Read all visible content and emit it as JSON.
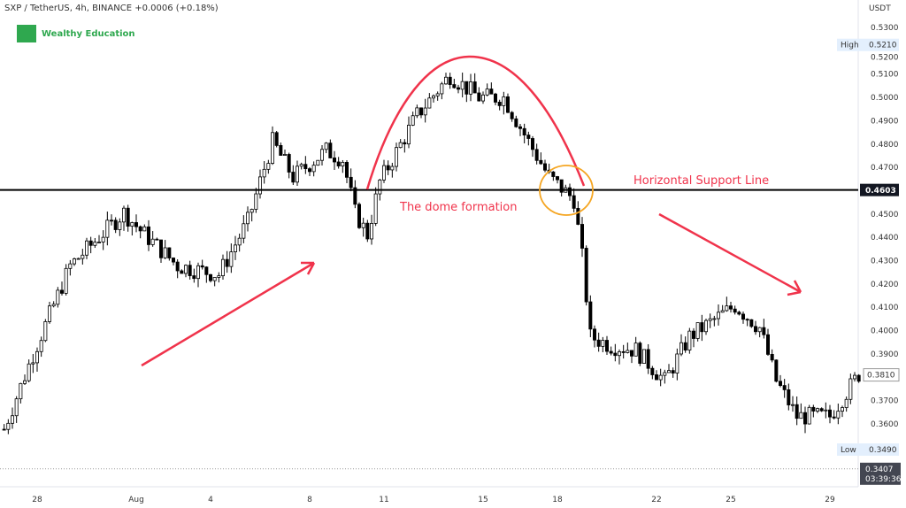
{
  "header": {
    "symbol_line": "SXP / TetherUS, 4h, BINANCE  +0.0006 (+0.18%)"
  },
  "logo": {
    "mark": "WE",
    "text": "Wealthy Education",
    "color": "#2fa84f"
  },
  "chart_data": {
    "type": "candlestick",
    "currency": "USDT",
    "ylim": [
      0.345,
      0.535
    ],
    "y_ticks": [
      "0.5300",
      "0.5200",
      "0.5100",
      "0.5000",
      "0.4900",
      "0.4800",
      "0.4700",
      "0.4500",
      "0.4400",
      "0.4300",
      "0.4200",
      "0.4100",
      "0.4000",
      "0.3900",
      "0.3700",
      "0.3600"
    ],
    "x_ticks": [
      {
        "label": "28",
        "t": "2020-07-28T00:00"
      },
      {
        "label": "Aug",
        "t": "2020-08-01T00:00"
      },
      {
        "label": "4",
        "t": "2020-08-04T00:00"
      },
      {
        "label": "8",
        "t": "2020-08-08T00:00"
      },
      {
        "label": "11",
        "t": "2020-08-11T00:00"
      },
      {
        "label": "15",
        "t": "2020-08-15T00:00"
      },
      {
        "label": "18",
        "t": "2020-08-18T00:00"
      },
      {
        "label": "22",
        "t": "2020-08-22T00:00"
      },
      {
        "label": "25",
        "t": "2020-08-25T00:00"
      },
      {
        "label": "29",
        "t": "2020-08-29T00:00"
      }
    ],
    "approx_close_path": [
      [
        "2020-07-26T16:00",
        0.3577
      ],
      [
        "2020-07-27T20:00",
        0.3898
      ],
      [
        "2020-07-29T08:00",
        0.4278
      ],
      [
        "2020-07-31T12:00",
        0.4506
      ],
      [
        "2020-08-01T04:00",
        0.443
      ],
      [
        "2020-08-02T16:00",
        0.4278
      ],
      [
        "2020-08-04T08:00",
        0.424
      ],
      [
        "2020-08-05T12:00",
        0.4468
      ],
      [
        "2020-08-06T12:00",
        0.481
      ],
      [
        "2020-08-07T08:00",
        0.4658
      ],
      [
        "2020-08-08T16:00",
        0.4772
      ],
      [
        "2020-08-09T08:00",
        0.4734
      ],
      [
        "2020-08-09T20:00",
        0.4506
      ],
      [
        "2020-08-10T08:00",
        0.4411
      ],
      [
        "2020-08-10T20:00",
        0.4639
      ],
      [
        "2020-08-12T08:00",
        0.4924
      ],
      [
        "2020-08-13T16:00",
        0.5095
      ],
      [
        "2020-08-14T20:00",
        0.5
      ],
      [
        "2020-08-15T20:00",
        0.5
      ],
      [
        "2020-08-16T20:00",
        0.481
      ],
      [
        "2020-08-17T16:00",
        0.4658
      ],
      [
        "2020-08-18T16:00",
        0.4563
      ],
      [
        "2020-08-19T00:00",
        0.4316
      ],
      [
        "2020-08-19T08:00",
        0.3974
      ],
      [
        "2020-08-20T04:00",
        0.3936
      ],
      [
        "2020-08-21T04:00",
        0.3917
      ],
      [
        "2020-08-22T08:00",
        0.3784
      ],
      [
        "2020-08-23T08:00",
        0.3974
      ],
      [
        "2020-08-25T04:00",
        0.4107
      ],
      [
        "2020-08-26T04:00",
        0.4012
      ],
      [
        "2020-08-26T20:00",
        0.3784
      ],
      [
        "2020-08-27T16:00",
        0.3632
      ],
      [
        "2020-08-29T00:00",
        0.3632
      ],
      [
        "2020-08-30T04:00",
        0.3813
      ]
    ],
    "high": {
      "label": "High",
      "value": "0.5210"
    },
    "low": {
      "label": "Low",
      "value": "0.3490"
    },
    "last_price": {
      "value": "0.3810"
    },
    "current": {
      "value": "0.3407",
      "countdown": "03:39:36"
    },
    "support": {
      "value": "0.4603",
      "label": "Horizontal Support Line"
    },
    "annotations": {
      "dome": "The dome formation",
      "color": "#f0334b",
      "circle_color": "#f5a623"
    },
    "colors": {
      "up": "#ffffff",
      "down": "#000000"
    }
  }
}
